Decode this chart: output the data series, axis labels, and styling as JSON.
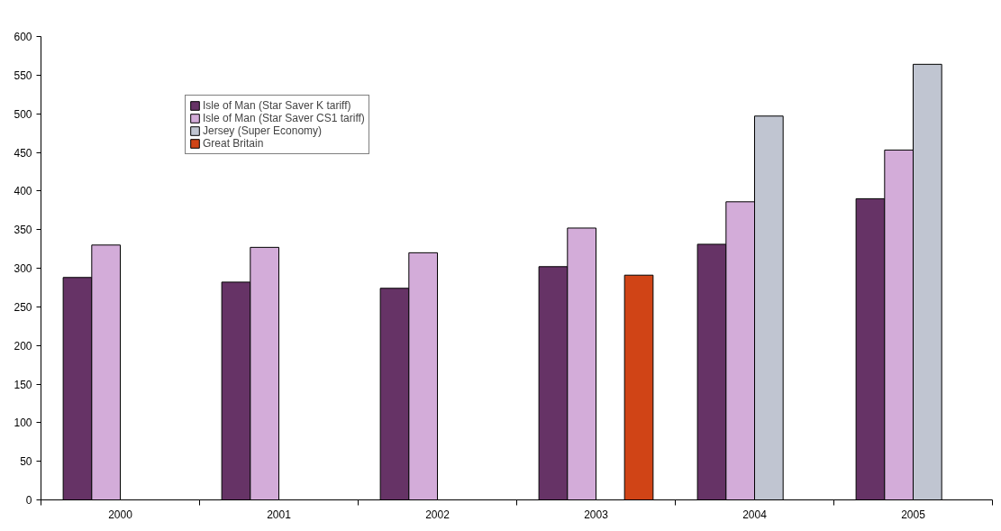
{
  "chart_data": {
    "type": "bar",
    "categories": [
      "2000",
      "2001",
      "2002",
      "2003",
      "2004",
      "2005"
    ],
    "series": [
      {
        "name": "Isle of Man (Star Saver K tariff)",
        "color": "#663366",
        "values": [
          288,
          282,
          274,
          302,
          331,
          390
        ]
      },
      {
        "name": "Isle of Man (Star Saver CS1 tariff)",
        "color": "#d3acd9",
        "values": [
          330,
          327,
          320,
          352,
          386,
          453
        ]
      },
      {
        "name": "Jersey (Super Economy)",
        "color": "#c0c5d1",
        "values": [
          null,
          null,
          null,
          null,
          497,
          564
        ]
      },
      {
        "name": "Great Britain",
        "color": "#d04416",
        "values": [
          null,
          null,
          null,
          291,
          null,
          null
        ]
      }
    ],
    "ylim": [
      0,
      600
    ],
    "yticks": [
      0,
      50,
      100,
      150,
      200,
      250,
      300,
      350,
      400,
      450,
      500,
      550,
      600
    ],
    "grid": false,
    "legend": "top left"
  }
}
